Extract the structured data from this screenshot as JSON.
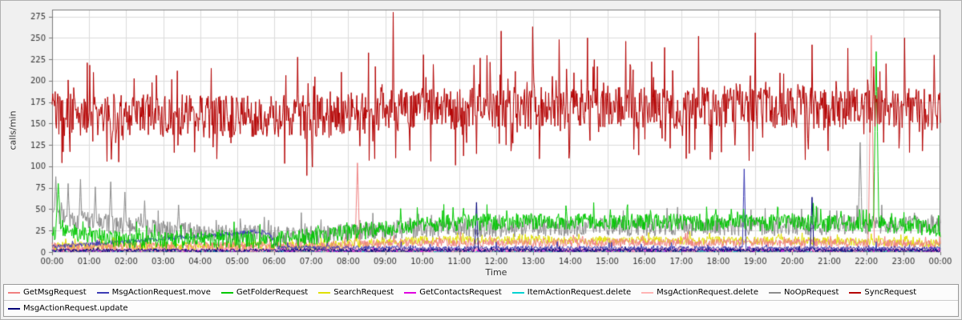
{
  "page": {
    "background": "#f0f0f0"
  },
  "chart_data": {
    "type": "line",
    "title": "",
    "xlabel": "Time",
    "ylabel": "calls/min",
    "x_unit": "minutes_since_00:00",
    "x_range": [
      0,
      1440
    ],
    "x_tick_interval_minutes": 60,
    "x_tick_labels": [
      "00:00",
      "01:00",
      "02:00",
      "03:00",
      "04:00",
      "05:00",
      "06:00",
      "07:00",
      "08:00",
      "09:00",
      "10:00",
      "11:00",
      "12:00",
      "13:00",
      "14:00",
      "15:00",
      "16:00",
      "17:00",
      "18:00",
      "19:00",
      "20:00",
      "21:00",
      "22:00",
      "23:00",
      "00:00"
    ],
    "y_ticks": [
      0,
      25,
      50,
      75,
      100,
      125,
      150,
      175,
      200,
      225,
      250,
      275
    ],
    "ylim": [
      0,
      283
    ],
    "grid": true,
    "legend_position": "bottom",
    "colors": {
      "background": "#f0f0f0",
      "plot_background": "#ffffff",
      "grid": "#dcdcdc",
      "plot_border": "#7a7a7a",
      "tick_text": "#333333"
    },
    "series_encoding": "Each series approximates the plotted per-minute values: piecewise-linear base levels as [minute,value] pairs, random jitter of amplitude 'noise', occasional one-sided (or two-sided) bursts, and explicit needle spikes as [minute, peak_value, width_minutes].",
    "series": [
      {
        "name": "GetMsgRequest",
        "color": "#f08080",
        "segments": [
          [
            0,
            6
          ],
          [
            480,
            8
          ],
          [
            600,
            11
          ],
          [
            1200,
            11
          ],
          [
            1440,
            9
          ]
        ],
        "noise": 5,
        "burst_prob": 0.03,
        "burst_amp": 10,
        "spikes": [
          [
            495,
            104,
            4
          ],
          [
            1328,
            253,
            5
          ]
        ]
      },
      {
        "name": "MsgActionRequest.move",
        "color": "#3c3cb4",
        "segments": [
          [
            0,
            6
          ],
          [
            270,
            20
          ],
          [
            330,
            24
          ],
          [
            352,
            21
          ],
          [
            365,
            5
          ],
          [
            1440,
            4
          ]
        ],
        "noise": 2.5,
        "burst_prob": 0.02,
        "burst_amp": 6,
        "spikes": [
          [
            1122,
            97,
            3
          ]
        ]
      },
      {
        "name": "GetFolderRequest",
        "color": "#00c800",
        "segments": [
          [
            0,
            20
          ],
          [
            20,
            24
          ],
          [
            120,
            14
          ],
          [
            360,
            14
          ],
          [
            480,
            22
          ],
          [
            600,
            33
          ],
          [
            780,
            36
          ],
          [
            1320,
            33
          ],
          [
            1440,
            27
          ]
        ],
        "noise": 10,
        "burst_prob": 0.08,
        "burst_amp": 14,
        "spikes": [
          [
            10,
            80,
            6
          ],
          [
            1336,
            234,
            5
          ]
        ]
      },
      {
        "name": "SearchRequest",
        "color": "#e0e000",
        "segments": [
          [
            0,
            7
          ],
          [
            420,
            7
          ],
          [
            600,
            14
          ],
          [
            1260,
            13
          ],
          [
            1440,
            10
          ]
        ],
        "noise": 5,
        "burst_prob": 0.05,
        "burst_amp": 8,
        "spikes": []
      },
      {
        "name": "GetContactsRequest",
        "color": "#e000e0",
        "segments": [
          [
            0,
            2
          ],
          [
            1440,
            2
          ]
        ],
        "noise": 2,
        "burst_prob": 0.02,
        "burst_amp": 4,
        "spikes": []
      },
      {
        "name": "ItemActionRequest.delete",
        "color": "#00d2d2",
        "segments": [
          [
            0,
            1.5
          ],
          [
            1440,
            1.5
          ]
        ],
        "noise": 1.5,
        "burst_prob": 0.02,
        "burst_amp": 3,
        "spikes": []
      },
      {
        "name": "MsgActionRequest.delete",
        "color": "#ffb4b4",
        "segments": [
          [
            0,
            3
          ],
          [
            1440,
            3
          ]
        ],
        "noise": 3,
        "burst_prob": 0.03,
        "burst_amp": 6,
        "spikes": []
      },
      {
        "name": "NoOpRequest",
        "color": "#8c8c8c",
        "segments": [
          [
            0,
            42
          ],
          [
            120,
            30
          ],
          [
            240,
            22
          ],
          [
            420,
            20
          ],
          [
            600,
            28
          ],
          [
            1200,
            30
          ],
          [
            1440,
            33
          ]
        ],
        "noise": 11,
        "burst_prob": 0.07,
        "burst_amp": 16,
        "spikes": [
          [
            6,
            88,
            5
          ],
          [
            26,
            80,
            4
          ],
          [
            46,
            85,
            4
          ],
          [
            70,
            76,
            4
          ],
          [
            95,
            82,
            4
          ],
          [
            118,
            70,
            4
          ],
          [
            150,
            60,
            4
          ],
          [
            205,
            55,
            4
          ],
          [
            1310,
            128,
            4
          ]
        ]
      },
      {
        "name": "SyncRequest",
        "color": "#b40000",
        "segments": [
          [
            0,
            160
          ],
          [
            420,
            158
          ],
          [
            600,
            168
          ],
          [
            1440,
            168
          ]
        ],
        "noise": 25,
        "burst_prob": 0.17,
        "burst_amp": 52,
        "burst_two_sided": true,
        "spikes": [
          [
            553,
            280,
            3
          ],
          [
            728,
            258,
            3
          ],
          [
            779,
            263,
            3
          ],
          [
            822,
            248,
            3
          ],
          [
            868,
            250,
            3
          ],
          [
            930,
            246,
            3
          ],
          [
            1048,
            252,
            3
          ],
          [
            1140,
            256,
            3
          ],
          [
            1232,
            242,
            3
          ],
          [
            1290,
            238,
            3
          ],
          [
            1382,
            250,
            3
          ],
          [
            1430,
            230,
            3
          ]
        ]
      },
      {
        "name": "MsgActionRequest.update",
        "color": "#000078",
        "segments": [
          [
            0,
            2
          ],
          [
            1440,
            2
          ]
        ],
        "noise": 2,
        "burst_prob": 0.02,
        "burst_amp": 4,
        "spikes": [
          [
            688,
            58,
            3
          ],
          [
            1232,
            64,
            3
          ]
        ]
      }
    ],
    "draw_order": [
      5,
      4,
      6,
      3,
      7,
      0,
      1,
      9,
      2,
      8
    ]
  },
  "legend": {
    "rows": [
      [
        0,
        1,
        2,
        3,
        4,
        5,
        6,
        7,
        8
      ],
      [
        9
      ]
    ]
  }
}
